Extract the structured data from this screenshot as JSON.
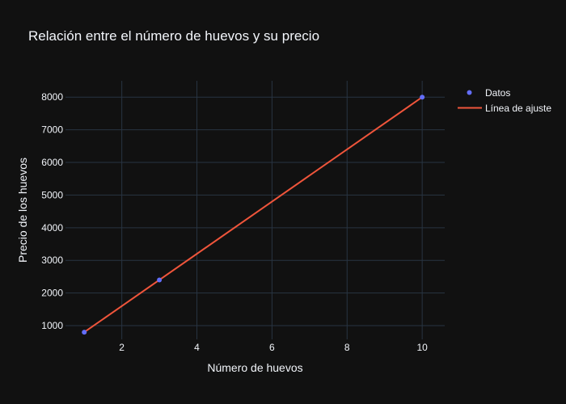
{
  "chart_data": {
    "type": "scatter",
    "title": "Relación entre el número de huevos y su precio",
    "xlabel": "Número de huevos",
    "ylabel": "Precio de los huevos",
    "xlim": [
      0.5,
      10.6
    ],
    "ylim": [
      580,
      8500
    ],
    "xticks": [
      2,
      4,
      6,
      8,
      10
    ],
    "yticks": [
      1000,
      2000,
      3000,
      4000,
      5000,
      6000,
      7000,
      8000
    ],
    "grid": true,
    "legend_position": "top-right",
    "series": [
      {
        "name": "Datos",
        "mode": "markers",
        "color": "#636efa",
        "x": [
          1,
          3,
          10
        ],
        "y": [
          800,
          2400,
          8000
        ]
      },
      {
        "name": "Línea de ajuste",
        "mode": "lines",
        "color": "#ef553b",
        "x": [
          1,
          10
        ],
        "y": [
          800,
          8000
        ]
      }
    ]
  }
}
